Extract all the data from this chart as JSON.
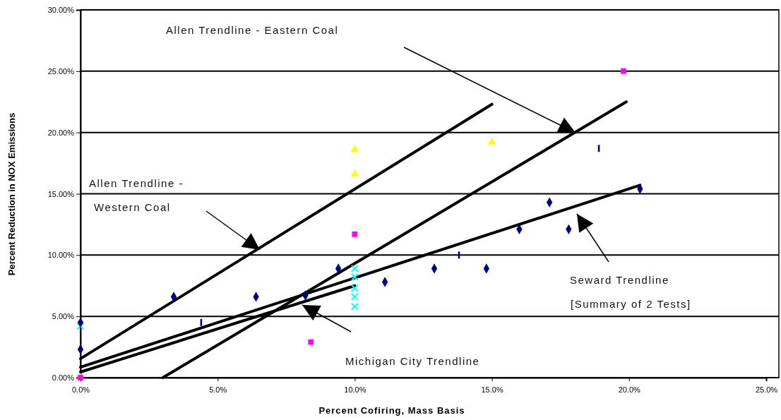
{
  "chart_data": {
    "type": "scatter",
    "xlabel": "Percent Cofiring, Mass Basis",
    "ylabel": "Percent Reduction in NOX Emissions",
    "grid": "y",
    "xlim": [
      0,
      25
    ],
    "ylim": [
      0,
      30
    ],
    "xticks": [
      {
        "value": 0,
        "label": "0.0%"
      },
      {
        "value": 5,
        "label": "5.0%"
      },
      {
        "value": 10,
        "label": "10.0%"
      },
      {
        "value": 15,
        "label": "15.0%"
      },
      {
        "value": 20,
        "label": "20.0%"
      },
      {
        "value": 25,
        "label": "25.0%"
      }
    ],
    "yticks": [
      {
        "value": 0,
        "label": "0.00%"
      },
      {
        "value": 5,
        "label": "5.00%"
      },
      {
        "value": 10,
        "label": "10.00%"
      },
      {
        "value": 15,
        "label": "15.00%"
      },
      {
        "value": 20,
        "label": "20.00%"
      },
      {
        "value": 25,
        "label": "25.00%"
      },
      {
        "value": 30,
        "label": "30.00%"
      }
    ],
    "series": [
      {
        "marker": "diamond",
        "color": "#000080",
        "x": [
          0,
          0,
          3.4,
          6.4,
          8.2,
          9.4,
          11.1,
          12.9,
          14.8,
          16.0,
          17.1,
          17.8,
          20.4
        ],
        "values": [
          4.5,
          2.3,
          6.6,
          6.6,
          6.7,
          8.9,
          7.8,
          8.9,
          8.9,
          12.1,
          14.3,
          12.1,
          15.4
        ]
      },
      {
        "color": "#000080",
        "x": [
          4.4,
          13.8,
          18.9
        ],
        "values": [
          4.5,
          10.0,
          18.7
        ]
      },
      {
        "marker": "square",
        "color": "#ff00ff",
        "x": [
          0,
          8.4,
          10.0,
          19.8
        ],
        "values": [
          0,
          2.9,
          11.7,
          25.0
        ]
      },
      {
        "marker": "triangle",
        "color": "#ffff00",
        "x": [
          0,
          10.0,
          10.0,
          15.0
        ],
        "values": [
          0,
          18.6,
          16.6,
          19.2
        ]
      },
      {
        "marker": "cross",
        "color": "#00ffff",
        "x": [
          0,
          10.0,
          10.0,
          10.0,
          10.0,
          10.0
        ],
        "values": [
          4.2,
          8.9,
          8.2,
          7.3,
          6.6,
          5.8
        ]
      },
      {
        "type": "line",
        "marker": "none",
        "color": "#000000",
        "x": [
          0,
          15.0
        ],
        "values": [
          1.55,
          22.3
        ]
      },
      {
        "type": "line",
        "marker": "none",
        "color": "#000000",
        "x": [
          3.0,
          19.9
        ],
        "values": [
          0,
          22.5
        ]
      },
      {
        "type": "line",
        "marker": "none",
        "color": "#000000",
        "x": [
          0,
          20.4
        ],
        "values": [
          0.86,
          15.7
        ]
      },
      {
        "type": "line",
        "marker": "none",
        "color": "#000000",
        "x": [
          0,
          10.0
        ],
        "values": [
          0.46,
          7.5
        ]
      }
    ],
    "annotations": [
      "Allen Trendline - Eastern Coal",
      "Allen Trendline -\nWestern Coal",
      "Seward Trendline\n[Summary of 2 Tests]",
      "Michigan City Trendline"
    ]
  }
}
